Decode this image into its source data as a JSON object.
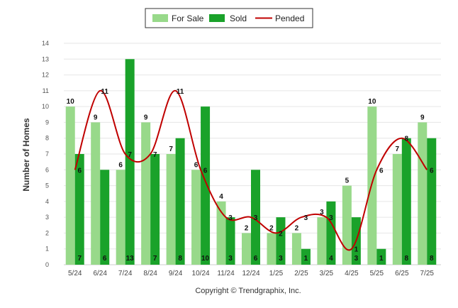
{
  "chart_data": {
    "type": "bar",
    "categories": [
      "5/24",
      "6/24",
      "7/24",
      "8/24",
      "9/24",
      "10/24",
      "11/24",
      "12/24",
      "1/25",
      "2/25",
      "3/25",
      "4/25",
      "5/25",
      "6/25",
      "7/25"
    ],
    "series": [
      {
        "name": "For Sale",
        "type": "bar",
        "color": "#98d98a",
        "values": [
          10,
          9,
          6,
          9,
          7,
          6,
          4,
          2,
          2,
          2,
          3,
          5,
          10,
          7,
          9
        ]
      },
      {
        "name": "Sold",
        "type": "bar",
        "color": "#1aa22a",
        "values": [
          7,
          6,
          13,
          7,
          8,
          10,
          3,
          6,
          3,
          1,
          4,
          3,
          1,
          8,
          8
        ]
      },
      {
        "name": "Pended",
        "type": "line",
        "color": "#c00000",
        "values": [
          6,
          11,
          7,
          7,
          11,
          6,
          3,
          3,
          2,
          3,
          3,
          1,
          6,
          8,
          6
        ]
      }
    ],
    "ylabel": "Number of Homes",
    "xlabel": "",
    "ylim": [
      0,
      14
    ],
    "yticks": [
      0,
      1,
      2,
      3,
      4,
      5,
      6,
      7,
      8,
      9,
      10,
      11,
      12,
      13,
      14
    ],
    "legend_position": "top-center",
    "grid": true,
    "copyright": "Copyright © Trendgraphix, Inc."
  }
}
